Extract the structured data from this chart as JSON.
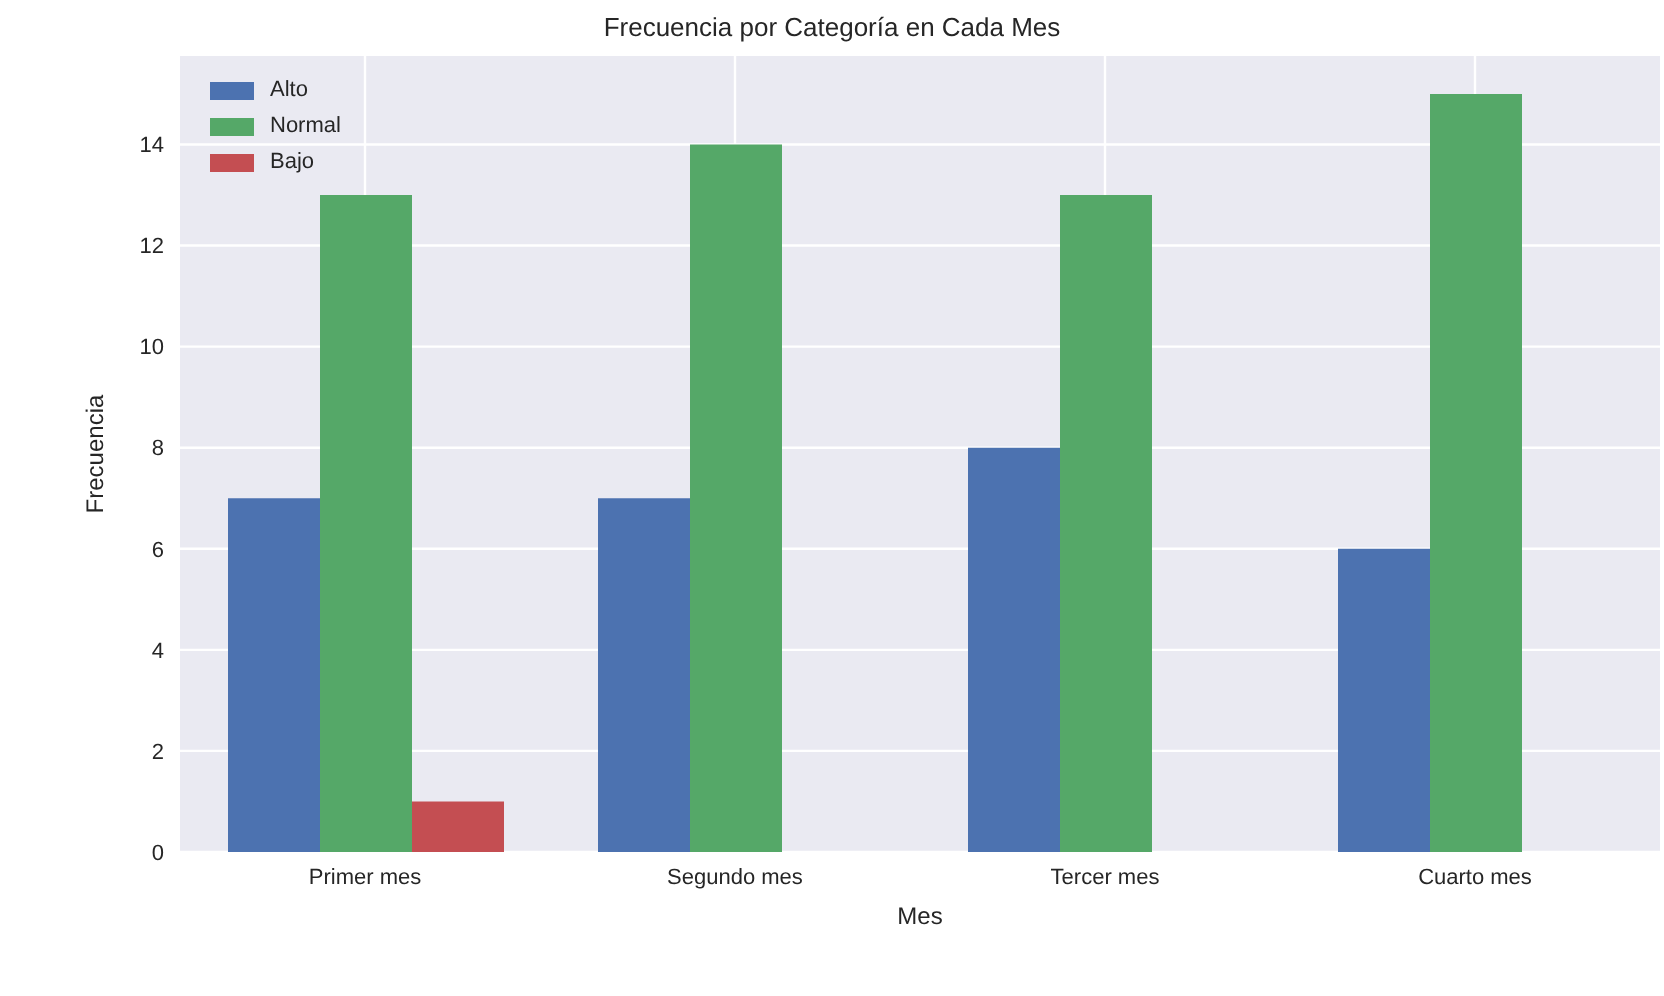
{
  "chart_data": {
    "type": "bar",
    "title": "Frecuencia por Categoría en Cada Mes",
    "xlabel": "Mes",
    "ylabel": "Frecuencia",
    "categories": [
      "Primer mes",
      "Segundo mes",
      "Tercer mes",
      "Cuarto mes"
    ],
    "series": [
      {
        "name": "Alto",
        "color": "#4c72b0",
        "values": [
          7,
          7,
          8,
          6
        ]
      },
      {
        "name": "Normal",
        "color": "#55a868",
        "values": [
          13,
          14,
          13,
          15
        ]
      },
      {
        "name": "Bajo",
        "color": "#c44e52",
        "values": [
          1,
          0,
          0,
          0
        ]
      }
    ],
    "ylim": [
      0,
      15.75
    ],
    "yticks": [
      0,
      2,
      4,
      6,
      8,
      10,
      12,
      14
    ],
    "grid": true,
    "legend": "top left"
  }
}
